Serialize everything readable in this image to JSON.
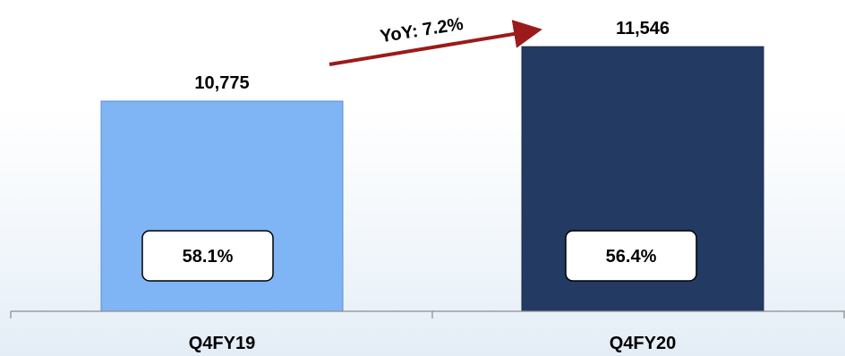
{
  "chart_data": {
    "type": "bar",
    "categories": [
      "Q4FY19",
      "Q4FY20"
    ],
    "values": [
      10775,
      11546
    ],
    "value_labels": [
      "10,775",
      "11,546"
    ],
    "inner_labels": [
      "58.1%",
      "56.4%"
    ],
    "annotation": "YoY: 7.2%",
    "bar_colors": [
      "#7fb4f5",
      "#233a63"
    ],
    "arrow_color": "#9b1b1b",
    "ylim": [
      7800,
      11700
    ],
    "grid": false,
    "legend": "none"
  }
}
